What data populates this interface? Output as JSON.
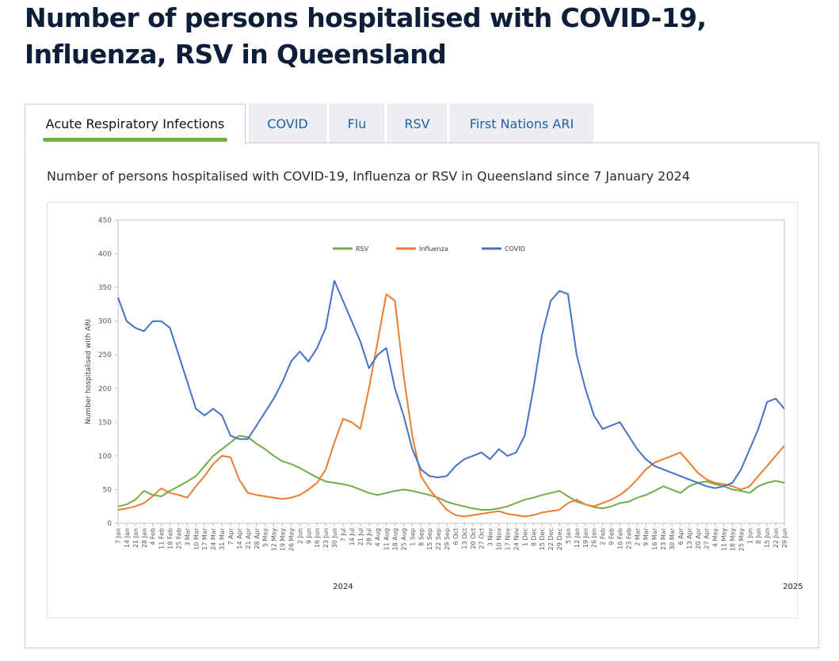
{
  "page": {
    "title": "Number of persons hospitalised with COVID-19, Influenza, RSV  in Queensland"
  },
  "tabs": [
    {
      "label": "Acute Respiratory Infections",
      "active": true
    },
    {
      "label": "COVID",
      "active": false
    },
    {
      "label": "Flu",
      "active": false
    },
    {
      "label": "RSV",
      "active": false
    },
    {
      "label": "First Nations ARI",
      "active": false
    }
  ],
  "colors": {
    "accent": "#6cb33f",
    "tab_text": "#1d5fa8",
    "title": "#0d1f38"
  },
  "chart_data": {
    "type": "line",
    "title": "Number of persons hospitalised with COVID-19, Influenza or RSV in Queensland since 7 January 2024",
    "xlabel": "",
    "ylabel": "Number hospitalised with ARI",
    "ylim": [
      0,
      450
    ],
    "yticks": [
      0,
      50,
      100,
      150,
      200,
      250,
      300,
      350,
      400,
      450
    ],
    "grid": false,
    "legend_position": "top-center",
    "year_labels": [
      {
        "label": "2024",
        "week_index": 26
      },
      {
        "label": "2025",
        "week_index": 78
      }
    ],
    "categories": [
      "7 Jan",
      "14 Jan",
      "21 Jan",
      "28 Jan",
      "4 Feb",
      "11 Feb",
      "18 Feb",
      "25 Feb",
      "3 Mar",
      "10 Mar",
      "17 Mar",
      "24 Mar",
      "31 Mar",
      "7 Apr",
      "14 Apr",
      "21 Apr",
      "28 Apr",
      "5 May",
      "12 May",
      "19 May",
      "26 May",
      "2 Jun",
      "9 Jun",
      "16 Jun",
      "23 Jun",
      "30 Jun",
      "7 Jul",
      "14 Jul",
      "21 Jul",
      "28 Jul",
      "4 Aug",
      "11 Aug",
      "18 Aug",
      "25 Aug",
      "1 Sep",
      "8 Sep",
      "15 Sep",
      "22 Sep",
      "29 Sep",
      "6 Oct",
      "13 Oct",
      "20 Oct",
      "27 Oct",
      "3 Nov",
      "10 Nov",
      "17 Nov",
      "24 Nov",
      "1 Dec",
      "8 Dec",
      "15 Dec",
      "22 Dec",
      "29 Dec",
      "5 Jan",
      "12 Jan",
      "19 Jan",
      "26 Jan",
      "2 Feb",
      "9 Feb",
      "16 Feb",
      "23 Feb",
      "2 Mar",
      "9 Mar",
      "16 Mar",
      "23 Mar",
      "30 Mar",
      "6 Apr",
      "13 Apr",
      "20 Apr",
      "27 Apr",
      "4 May",
      "11 May",
      "18 May",
      "25 May",
      "1 Jun",
      "8 Jun",
      "15 Jun",
      "22 Jun",
      "29 Jun"
    ],
    "series": [
      {
        "name": "RSV",
        "color": "#70ad47",
        "values": [
          25,
          28,
          35,
          48,
          42,
          40,
          48,
          55,
          62,
          70,
          85,
          100,
          110,
          120,
          130,
          128,
          118,
          110,
          100,
          92,
          88,
          82,
          75,
          68,
          62,
          60,
          58,
          55,
          50,
          45,
          42,
          45,
          48,
          50,
          48,
          45,
          42,
          38,
          32,
          28,
          25,
          22,
          20,
          20,
          22,
          25,
          30,
          35,
          38,
          42,
          45,
          48,
          40,
          32,
          28,
          24,
          22,
          25,
          30,
          32,
          38,
          42,
          48,
          55,
          50,
          45,
          55,
          60,
          62,
          58,
          55,
          50,
          48,
          45,
          55,
          60,
          63,
          60
        ]
      },
      {
        "name": "Influenza",
        "color": "#ed7d31",
        "values": [
          20,
          22,
          25,
          30,
          40,
          52,
          45,
          42,
          38,
          55,
          70,
          88,
          100,
          98,
          65,
          45,
          42,
          40,
          38,
          36,
          38,
          42,
          50,
          60,
          80,
          120,
          155,
          150,
          140,
          200,
          270,
          340,
          330,
          220,
          130,
          70,
          50,
          35,
          20,
          12,
          10,
          12,
          14,
          16,
          18,
          14,
          12,
          10,
          12,
          16,
          18,
          20,
          30,
          35,
          28,
          25,
          30,
          35,
          42,
          52,
          65,
          80,
          90,
          95,
          100,
          105,
          90,
          75,
          65,
          60,
          58,
          55,
          50,
          55,
          70,
          85,
          100,
          115
        ]
      },
      {
        "name": "COVID",
        "color": "#4472c4",
        "values": [
          335,
          300,
          290,
          285,
          300,
          300,
          290,
          250,
          210,
          170,
          160,
          170,
          160,
          130,
          125,
          125,
          145,
          165,
          185,
          210,
          240,
          255,
          240,
          260,
          290,
          360,
          330,
          300,
          270,
          230,
          250,
          260,
          200,
          160,
          110,
          80,
          70,
          68,
          70,
          85,
          95,
          100,
          105,
          95,
          110,
          100,
          105,
          130,
          200,
          280,
          330,
          345,
          340,
          250,
          200,
          160,
          140,
          145,
          150,
          130,
          110,
          95,
          85,
          80,
          75,
          70,
          65,
          60,
          55,
          52,
          55,
          60,
          80,
          110,
          140,
          180,
          185,
          170
        ]
      }
    ]
  }
}
